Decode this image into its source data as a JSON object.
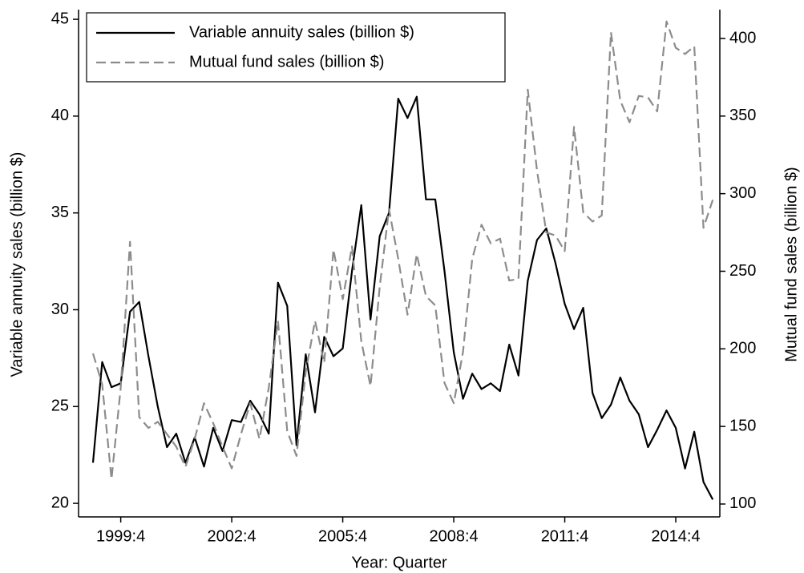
{
  "chart_data": {
    "type": "line",
    "x_label": "Year: Quarter",
    "y_label": "Variable annuity sales (billion $)",
    "y2_label": "Mutual fund sales (billion $)",
    "categories": [
      null,
      null,
      null,
      "1999:4",
      null,
      null,
      null,
      null,
      null,
      null,
      null,
      null,
      null,
      null,
      null,
      "2002:4",
      null,
      null,
      null,
      null,
      null,
      null,
      null,
      null,
      null,
      null,
      null,
      "2005:4",
      null,
      null,
      null,
      null,
      null,
      null,
      null,
      null,
      null,
      null,
      null,
      "2008:4",
      null,
      null,
      null,
      null,
      null,
      null,
      null,
      null,
      null,
      null,
      null,
      "2011:4",
      null,
      null,
      null,
      null,
      null,
      null,
      null,
      null,
      null,
      null,
      null,
      "2014:4",
      null,
      null,
      null,
      null
    ],
    "series": [
      {
        "name": "Variable annuity sales (billion $)",
        "color": "#000000",
        "dash": "solid",
        "values": [
          22.1,
          27.3,
          26.0,
          26.2,
          29.9,
          30.4,
          27.6,
          25.0,
          22.9,
          23.6,
          22.1,
          23.4,
          21.9,
          23.9,
          22.7,
          24.3,
          24.2,
          25.3,
          24.6,
          23.6,
          31.4,
          30.2,
          23.0,
          27.7,
          24.7,
          28.6,
          27.6,
          28.0,
          32.0,
          35.4,
          29.5,
          33.8,
          35.0,
          40.9,
          39.9,
          41.0,
          35.7,
          35.7,
          32.0,
          27.8,
          25.4,
          26.7,
          25.9,
          26.2,
          25.8,
          28.2,
          26.6,
          31.5,
          33.6,
          34.2,
          32.4,
          30.3,
          29.0,
          30.1,
          25.7,
          24.4,
          25.1,
          26.5,
          25.3,
          24.6,
          22.9,
          23.8,
          24.8,
          23.9,
          21.8,
          23.7,
          21.1,
          20.2
        ]
      },
      {
        "name": "Mutual fund sales (billion $)",
        "color": "#8c8c8c",
        "dash": "dashed",
        "axis": "y2",
        "values": [
          197,
          177,
          116,
          175,
          269,
          156,
          149,
          153,
          145,
          137,
          124,
          142,
          165,
          152,
          137,
          123,
          145,
          165,
          142,
          175,
          218,
          147,
          131,
          185,
          218,
          191,
          264,
          232,
          266,
          205,
          176,
          240,
          290,
          258,
          222,
          261,
          234,
          228,
          178,
          165,
          198,
          258,
          280,
          268,
          271,
          244,
          245,
          367,
          315,
          275,
          273,
          263,
          343,
          288,
          282,
          286,
          404,
          360,
          346,
          363,
          362,
          353,
          411,
          394,
          390,
          395,
          278,
          296
        ]
      }
    ],
    "ylim": [
      19.3,
      45.5
    ],
    "yticks": [
      20,
      25,
      30,
      35,
      40,
      45
    ],
    "y2lim": [
      91.7,
      418.6
    ],
    "y2ticks": [
      100,
      150,
      200,
      250,
      300,
      350,
      400
    ],
    "legend": "top-left"
  }
}
